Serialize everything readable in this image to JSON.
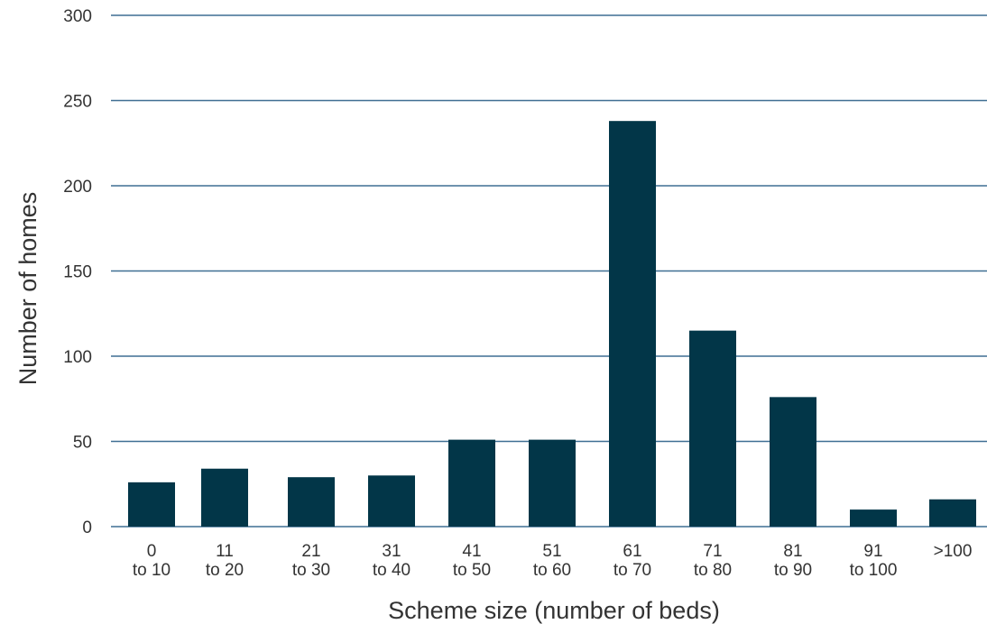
{
  "chart_data": {
    "type": "bar",
    "categories": [
      [
        "0",
        "to 10"
      ],
      [
        "11",
        "to 20"
      ],
      [
        "21",
        "to 30"
      ],
      [
        "31",
        "to 40"
      ],
      [
        "41",
        "to 50"
      ],
      [
        "51",
        "to 60"
      ],
      [
        "61",
        "to 70"
      ],
      [
        "71",
        "to 80"
      ],
      [
        "81",
        "to 90"
      ],
      [
        "91",
        "to 100"
      ],
      [
        ">100"
      ]
    ],
    "values": [
      26,
      34,
      29,
      30,
      51,
      51,
      238,
      115,
      76,
      10,
      16
    ],
    "title": "",
    "xlabel": "Scheme size (number of beds)",
    "ylabel": "Number of homes",
    "ylim": [
      0,
      300
    ],
    "yticks": [
      0,
      50,
      100,
      150,
      200,
      250,
      300
    ],
    "grid": true,
    "legend": "none",
    "colors": {
      "bar": "#023648",
      "grid": "#3f6f93",
      "text": "#333333"
    }
  }
}
